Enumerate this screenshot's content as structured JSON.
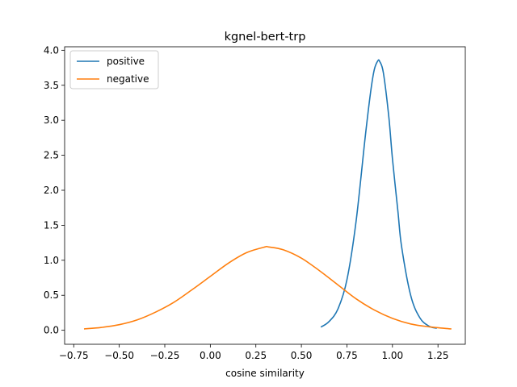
{
  "chart_data": {
    "type": "line",
    "title": "kgnel-bert-trp",
    "xlabel": "cosine similarity",
    "ylabel": "",
    "xlim": [
      -0.8,
      1.4
    ],
    "ylim": [
      -0.2,
      4.05
    ],
    "xticks": [
      -0.75,
      -0.5,
      -0.25,
      0.0,
      0.25,
      0.5,
      0.75,
      1.0,
      1.25
    ],
    "xtick_labels": [
      "−0.75",
      "−0.50",
      "−0.25",
      "0.00",
      "0.25",
      "0.50",
      "0.75",
      "1.00",
      "1.25"
    ],
    "yticks": [
      0.0,
      0.5,
      1.0,
      1.5,
      2.0,
      2.5,
      3.0,
      3.5,
      4.0
    ],
    "ytick_labels": [
      "0.0",
      "0.5",
      "1.0",
      "1.5",
      "2.0",
      "2.5",
      "3.0",
      "3.5",
      "4.0"
    ],
    "grid": false,
    "legend_position": "top-left",
    "series": [
      {
        "name": "positive",
        "color": "#1f77b4",
        "x": [
          0.61,
          0.65,
          0.7,
          0.75,
          0.8,
          0.85,
          0.88,
          0.9,
          0.92,
          0.93,
          0.95,
          0.98,
          1.0,
          1.03,
          1.05,
          1.1,
          1.15,
          1.2,
          1.24
        ],
        "y": [
          0.05,
          0.12,
          0.3,
          0.72,
          1.55,
          2.75,
          3.4,
          3.72,
          3.85,
          3.84,
          3.68,
          3.05,
          2.45,
          1.7,
          1.2,
          0.5,
          0.18,
          0.06,
          0.03
        ]
      },
      {
        "name": "negative",
        "color": "#ff7f0e",
        "x": [
          -0.69,
          -0.6,
          -0.5,
          -0.4,
          -0.3,
          -0.2,
          -0.1,
          0.0,
          0.1,
          0.2,
          0.3,
          0.32,
          0.4,
          0.5,
          0.6,
          0.7,
          0.8,
          0.9,
          1.0,
          1.1,
          1.2,
          1.32
        ],
        "y": [
          0.02,
          0.04,
          0.08,
          0.15,
          0.26,
          0.4,
          0.58,
          0.77,
          0.96,
          1.11,
          1.19,
          1.19,
          1.15,
          1.03,
          0.85,
          0.65,
          0.45,
          0.29,
          0.17,
          0.09,
          0.05,
          0.02
        ]
      }
    ]
  }
}
